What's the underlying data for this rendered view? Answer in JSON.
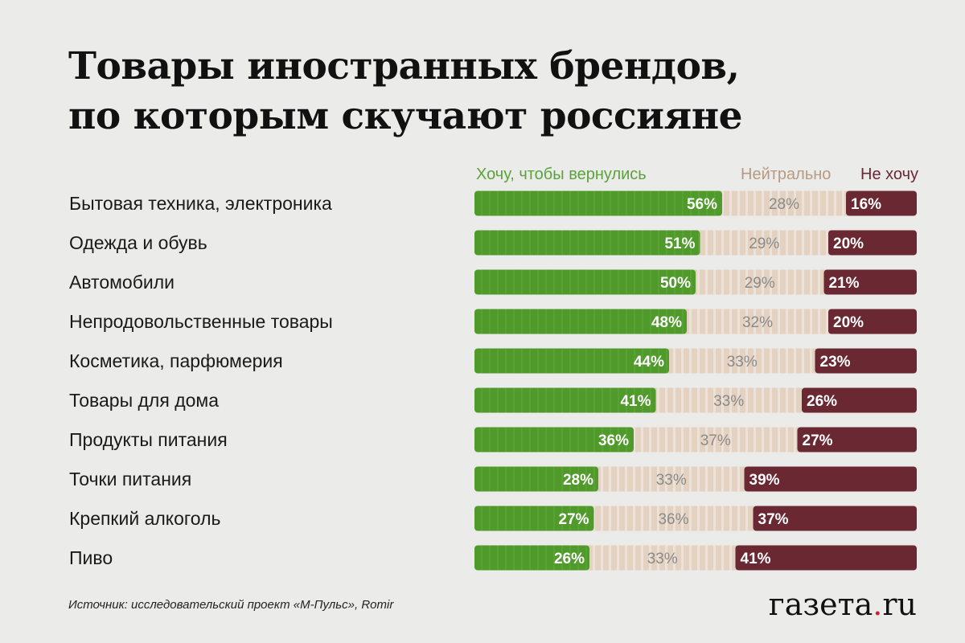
{
  "title_line1": "Товары иностранных брендов,",
  "title_line2": "по которым скучают россияне",
  "colors": {
    "want": "#4f9a2b",
    "neutral": "#e6d6c6",
    "not_want": "#6a2833",
    "background": "#ebebea"
  },
  "chart_data": {
    "type": "bar",
    "stacked": true,
    "orientation": "horizontal",
    "unit": "%",
    "xlim": [
      0,
      100
    ],
    "categories": [
      "Бытовая техника, электроника",
      "Одежда и обувь",
      "Автомобили",
      "Непродовольственные товары",
      "Косметика, парфюмерия",
      "Товары для дома",
      "Продукты питания",
      "Точки питания",
      "Крепкий алкоголь",
      "Пиво"
    ],
    "series": [
      {
        "name": "Хочу, чтобы вернулись",
        "values": [
          56,
          51,
          50,
          48,
          44,
          41,
          36,
          28,
          27,
          26
        ]
      },
      {
        "name": "Нейтрально",
        "values": [
          28,
          29,
          29,
          32,
          33,
          33,
          37,
          33,
          36,
          33
        ]
      },
      {
        "name": "Не хочу",
        "values": [
          16,
          20,
          21,
          20,
          23,
          26,
          27,
          39,
          37,
          41
        ]
      }
    ],
    "legend_placement": "top"
  },
  "source": "Источник: исследовательский проект «М-Пульс», Romir",
  "logo": {
    "main": "газета",
    "dot": ".",
    "tld": "ru"
  }
}
